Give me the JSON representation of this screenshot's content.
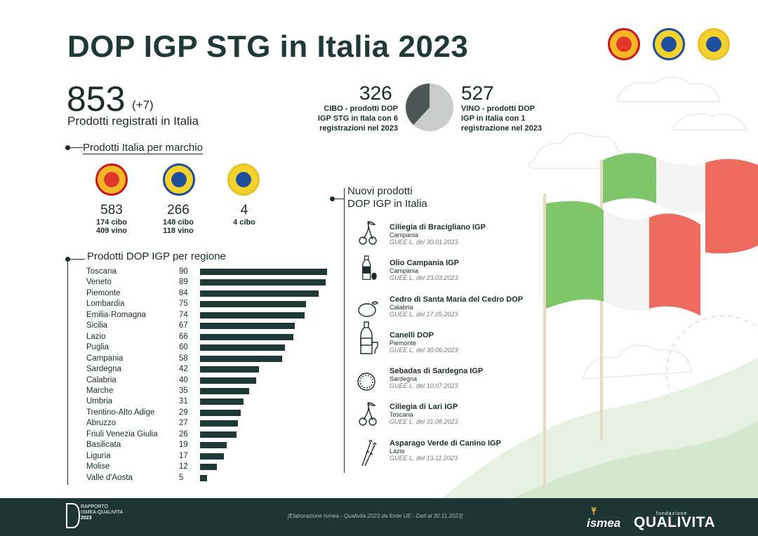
{
  "title": "DOP IGP STG in Italia 2023",
  "total": {
    "value": "853",
    "delta": "(+7)",
    "label": "Prodotti registrati in Italia"
  },
  "split": {
    "cibo": {
      "value": "326",
      "lines": [
        "CIBO - prodotti DOP",
        "IGP STG in Itala con 6",
        "registrazioni nel 2023"
      ]
    },
    "vino": {
      "value": "527",
      "lines": [
        "VINO - prodotti DOP",
        "IGP in Italia con 1",
        "registrazione nel 2023"
      ]
    },
    "pie_fractions": {
      "cibo": 0.382,
      "vino": 0.618
    },
    "colors": {
      "cibo": "#4a5754",
      "vino": "#c9cccb"
    }
  },
  "marchio": {
    "heading": "Prodotti Italia per marchio",
    "items": [
      {
        "icon": "dop-seal-icon",
        "total": "583",
        "lines": [
          "174 cibo",
          "409 vino"
        ]
      },
      {
        "icon": "igp-seal-icon",
        "total": "266",
        "lines": [
          "148 cibo",
          "118 vino"
        ]
      },
      {
        "icon": "stg-seal-icon",
        "total": "4",
        "lines": [
          "4 cibo"
        ]
      }
    ]
  },
  "regioni": {
    "heading": "Prodotti DOP IGP per regione",
    "max": 90,
    "rows": [
      {
        "name": "Toscana",
        "value": 90
      },
      {
        "name": "Veneto",
        "value": 89
      },
      {
        "name": "Piemonte",
        "value": 84
      },
      {
        "name": "Lombardia",
        "value": 75
      },
      {
        "name": "Emilia-Romagna",
        "value": 74
      },
      {
        "name": "Sicilia",
        "value": 67
      },
      {
        "name": "Lazio",
        "value": 66
      },
      {
        "name": "Puglia",
        "value": 60
      },
      {
        "name": "Campania",
        "value": 58
      },
      {
        "name": "Sardegna",
        "value": 42
      },
      {
        "name": "Calabria",
        "value": 40
      },
      {
        "name": "Marche",
        "value": 35
      },
      {
        "name": "Umbria",
        "value": 31
      },
      {
        "name": "Trentino-Alto Adige",
        "value": 29
      },
      {
        "name": "Abruzzo",
        "value": 27
      },
      {
        "name": "Friuli Venezia Giulia",
        "value": 26
      },
      {
        "name": "Basilicata",
        "value": 19
      },
      {
        "name": "Liguria",
        "value": 17
      },
      {
        "name": "Molise",
        "value": 12
      },
      {
        "name": "Valle d'Aosta",
        "value": 5
      }
    ]
  },
  "nuovi": {
    "heading_lines": [
      "Nuovi prodotti",
      "DOP IGP in Italia"
    ],
    "items": [
      {
        "icon": "cherries-icon",
        "name": "Ciliegia di Bracigliano IGP",
        "region": "Campania",
        "date": "GUEE L. del 30.01.2023"
      },
      {
        "icon": "oil-bottle-icon",
        "name": "Olio Campania IGP",
        "region": "Campania",
        "date": "GUEE L. del 23.03.2023"
      },
      {
        "icon": "lemon-icon",
        "name": "Cedro di Santa Maria del Cedro DOP",
        "region": "Calabria",
        "date": "GUEE L. del 17.05.2023"
      },
      {
        "icon": "wine-bottle-icon",
        "name": "Canelli DOP",
        "region": "Piemonte",
        "date": "GUEE L. del 30.06.2023"
      },
      {
        "icon": "sebadas-icon",
        "name": "Sebadas di Sardegna IGP",
        "region": "Sardegna",
        "date": "GUEE L. del 10.07.2023"
      },
      {
        "icon": "cherries-icon",
        "name": "Ciliegia di Lari IGP",
        "region": "Toscana",
        "date": "GUEE L. del 31.08.2023"
      },
      {
        "icon": "asparagus-icon",
        "name": "Asparago Verde di Canino IGP",
        "region": "Lazio",
        "date": "GUEE L. del 13.11.2023"
      }
    ]
  },
  "footer": {
    "rapporto_lines": [
      "RAPPORTO",
      "ISMEA-QUALIVITA",
      "2023"
    ],
    "note": "[Elaborazione Ismea - Qualivita 2023 da fonte UE - Dati al 30.11.2023]",
    "ismea": "ismea",
    "fondazione": "fondazione",
    "qualivita": "QUALIVITA"
  },
  "colors": {
    "dark": "#1f3a36",
    "flag_green": "#7fc66b",
    "flag_red": "#ee6b60",
    "footer": "#1e3633"
  }
}
